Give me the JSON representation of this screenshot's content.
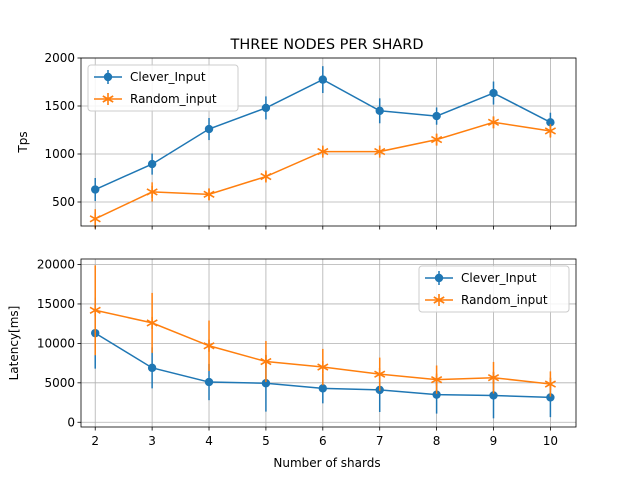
{
  "chart_data": [
    {
      "type": "line",
      "title": "THREE NODES PER SHARD",
      "xlabel": "",
      "ylabel": "Tps",
      "x": [
        2,
        3,
        4,
        5,
        6,
        7,
        8,
        9,
        10
      ],
      "xlim": [
        1.75,
        10.45
      ],
      "ylim": [
        250,
        2000
      ],
      "yticks": [
        500,
        1000,
        1500,
        2000
      ],
      "grid": true,
      "legend_position": "top-left",
      "series": [
        {
          "name": "Clever_Input",
          "marker": "circle",
          "color": "#1f77b4",
          "values": [
            630,
            895,
            1260,
            1480,
            1775,
            1450,
            1395,
            1635,
            1330
          ],
          "error": [
            120,
            110,
            115,
            120,
            140,
            130,
            90,
            120,
            100
          ]
        },
        {
          "name": "Random_input",
          "marker": "star",
          "color": "#ff7f0e",
          "values": [
            325,
            605,
            580,
            765,
            1025,
            1025,
            1150,
            1330,
            1240
          ],
          "error": [
            100,
            100,
            60,
            50,
            50,
            40,
            60,
            60,
            70
          ]
        }
      ]
    },
    {
      "type": "line",
      "title": "",
      "xlabel": "Number of shards",
      "ylabel": "Latency[ms]",
      "x": [
        2,
        3,
        4,
        5,
        6,
        7,
        8,
        9,
        10
      ],
      "xticks": [
        2,
        3,
        4,
        5,
        6,
        7,
        8,
        9,
        10
      ],
      "xlim": [
        1.75,
        10.45
      ],
      "ylim": [
        -600,
        20700
      ],
      "yticks": [
        0,
        5000,
        10000,
        15000,
        20000
      ],
      "grid": true,
      "legend_position": "top-right",
      "series": [
        {
          "name": "Clever_Input",
          "marker": "circle",
          "color": "#1f77b4",
          "values": [
            11300,
            6900,
            5100,
            4950,
            4300,
            4100,
            3500,
            3400,
            3150
          ],
          "error": [
            4500,
            2600,
            2300,
            3600,
            1900,
            2800,
            2400,
            2900,
            2500
          ]
        },
        {
          "name": "Random_input",
          "marker": "star",
          "color": "#ff7f0e",
          "values": [
            14200,
            12600,
            9700,
            7700,
            7000,
            6100,
            5400,
            5650,
            4850
          ],
          "error": [
            5700,
            3800,
            3200,
            2600,
            2300,
            2100,
            1800,
            2000,
            1600
          ]
        }
      ]
    }
  ]
}
